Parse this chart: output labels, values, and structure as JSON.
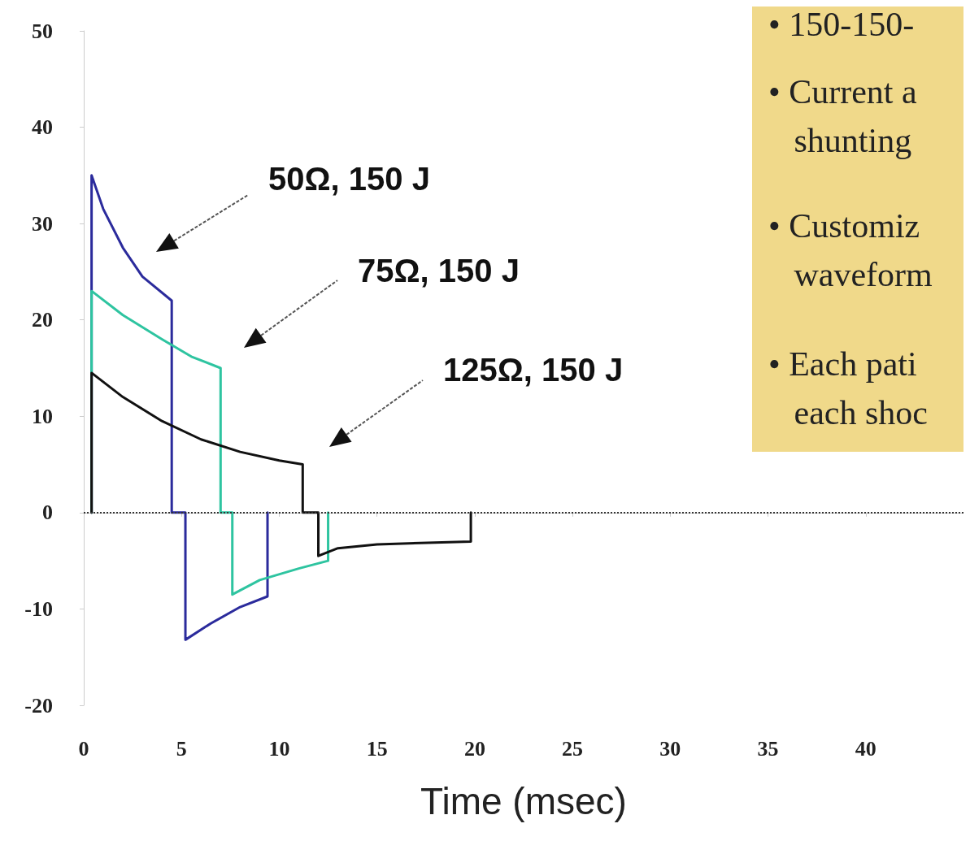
{
  "chart_data": {
    "type": "line",
    "xlabel": "Time (msec)",
    "xlim": [
      0,
      45
    ],
    "xticks": [
      0,
      5,
      10,
      15,
      20,
      25,
      30,
      35,
      40
    ],
    "ylim": [
      -20,
      50
    ],
    "yticks": [
      -20,
      -10,
      0,
      10,
      20,
      30,
      40,
      50
    ],
    "grid": false,
    "marker": "none",
    "line_style": "solid",
    "series": [
      {
        "color": "#2b2b9c",
        "x": [
          0.4,
          0.4,
          1,
          2,
          3,
          4.5,
          4.5,
          5.2,
          5.2,
          6.5,
          8,
          9.4,
          9.4
        ],
        "values": [
          0,
          35,
          31.5,
          27.5,
          24.5,
          22,
          0,
          0,
          -13.2,
          -11.5,
          -9.8,
          -8.7,
          0
        ]
      },
      {
        "color": "#2ec4a0",
        "x": [
          0.4,
          0.4,
          2,
          4,
          5.5,
          7,
          7,
          7.6,
          7.6,
          9,
          11,
          12.5,
          12.5
        ],
        "values": [
          0,
          23,
          20.5,
          18,
          16.2,
          15,
          0,
          0,
          -8.5,
          -7,
          -5.8,
          -5,
          0
        ]
      },
      {
        "color": "#111111",
        "x": [
          0.4,
          0.4,
          2,
          4,
          6,
          8,
          10,
          11.2,
          11.2,
          12,
          12,
          13,
          15,
          19.8,
          19.8
        ],
        "values": [
          0,
          14.5,
          12,
          9.5,
          7.6,
          6.3,
          5.4,
          5,
          0,
          0,
          -4.5,
          -3.7,
          -3.3,
          -3,
          0
        ]
      }
    ],
    "ref_lines": [
      {
        "axis": "y",
        "value": 0,
        "color": "#333333",
        "line_style": "dotted"
      }
    ],
    "annotations": [
      "50Ω, 150 J",
      "75Ω, 150 J",
      "125Ω, 150 J",
      "• 150-150-",
      "• Current a\n   shunting",
      "• Customiz\n   waveform",
      "• Each pati\n   each shoc"
    ]
  }
}
